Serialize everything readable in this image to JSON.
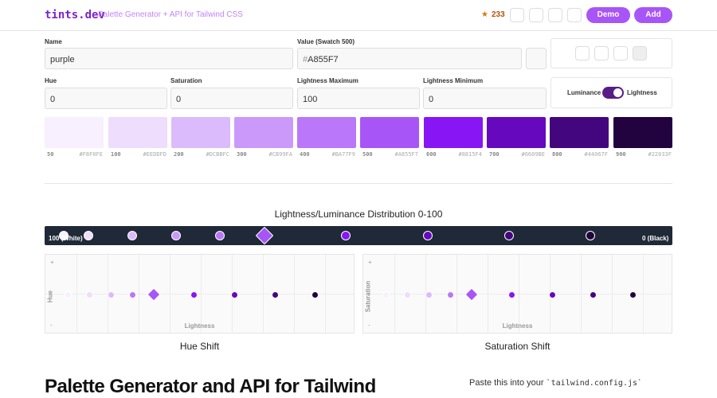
{
  "header": {
    "logo": "tints.dev",
    "tagline": "Palette Generator + API for Tailwind CSS",
    "stars": "233",
    "demo": "Demo",
    "add": "Add"
  },
  "form": {
    "name_label": "Name",
    "name_value": "purple",
    "value_label": "Value (Swatch 500)",
    "value_prefix": "#",
    "value_value": "A855F7",
    "hue_label": "Hue",
    "hue_value": "0",
    "saturation_label": "Saturation",
    "saturation_value": "0",
    "lmax_label": "Lightness Maximum",
    "lmax_value": "100",
    "lmin_label": "Lightness Minimum",
    "lmin_value": "0",
    "toggle_left": "Luminance",
    "toggle_right": "Lightness"
  },
  "swatches": [
    {
      "stop": "50",
      "hex": "#F8F0FE"
    },
    {
      "stop": "100",
      "hex": "#EEDDFD"
    },
    {
      "stop": "200",
      "hex": "#DCBBFC"
    },
    {
      "stop": "300",
      "hex": "#CB99FA"
    },
    {
      "stop": "400",
      "hex": "#BA77F9"
    },
    {
      "stop": "500",
      "hex": "#A855F7"
    },
    {
      "stop": "600",
      "hex": "#8815F4"
    },
    {
      "stop": "700",
      "hex": "#6609BE"
    },
    {
      "stop": "800",
      "hex": "#44067F"
    },
    {
      "stop": "900",
      "hex": "#22033F"
    }
  ],
  "distribution": {
    "title": "Lightness/Luminance Distribution 0-100",
    "left": "100 (White)",
    "right": "0 (Black)"
  },
  "graphs": [
    {
      "title": "Hue Shift",
      "x_label": "Lightness",
      "y_label": "Hue",
      "plus": "+",
      "minus": "-"
    },
    {
      "title": "Saturation Shift",
      "x_label": "Lightness",
      "y_label": "Saturation",
      "plus": "+",
      "minus": "-"
    }
  ],
  "footer": {
    "heading": "Palette Generator and API for Tailwind",
    "paste": "Paste this into your",
    "file": "`tailwind.config.js`"
  }
}
